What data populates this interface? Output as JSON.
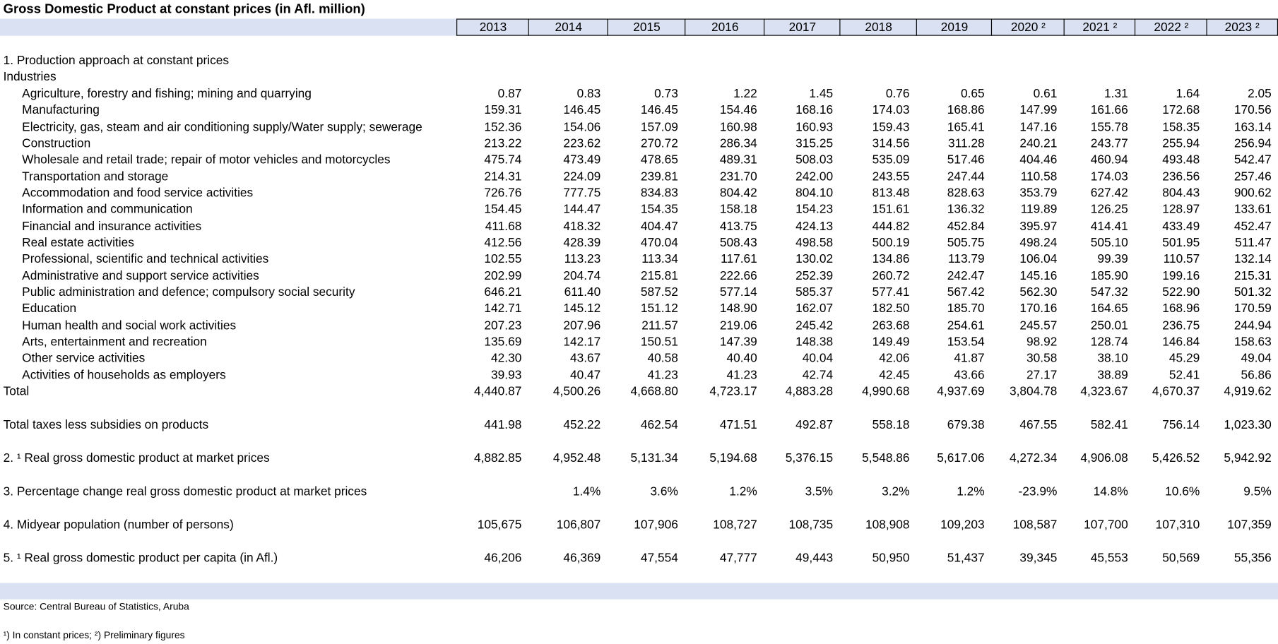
{
  "title": "Gross Domestic Product at constant prices (in Afl. million)",
  "columns": [
    "2013",
    "2014",
    "2015",
    "2016",
    "2017",
    "2018",
    "2019",
    "2020 ²",
    "2021 ²",
    "2022 ²",
    "2023 ²"
  ],
  "heading": "1. Production approach at constant prices",
  "industries": {
    "label": "Industries",
    "rows": [
      {
        "label": "Agriculture, forestry and fishing; mining and quarrying",
        "values": [
          "0.87",
          "0.83",
          "0.73",
          "1.22",
          "1.45",
          "0.76",
          "0.65",
          "0.61",
          "1.31",
          "1.64",
          "2.05"
        ]
      },
      {
        "label": "Manufacturing",
        "values": [
          "159.31",
          "146.45",
          "146.45",
          "154.46",
          "168.16",
          "174.03",
          "168.86",
          "147.99",
          "161.66",
          "172.68",
          "170.56"
        ]
      },
      {
        "label": "Electricity, gas, steam and air conditioning supply/Water supply; sewerage",
        "values": [
          "152.36",
          "154.06",
          "157.09",
          "160.98",
          "160.93",
          "159.43",
          "165.41",
          "147.16",
          "155.78",
          "158.35",
          "163.14"
        ]
      },
      {
        "label": "Construction",
        "values": [
          "213.22",
          "223.62",
          "270.72",
          "286.34",
          "315.25",
          "314.56",
          "311.28",
          "240.21",
          "243.77",
          "255.94",
          "256.94"
        ]
      },
      {
        "label": "Wholesale and retail trade; repair of motor vehicles and motorcycles",
        "values": [
          "475.74",
          "473.49",
          "478.65",
          "489.31",
          "508.03",
          "535.09",
          "517.46",
          "404.46",
          "460.94",
          "493.48",
          "542.47"
        ]
      },
      {
        "label": "Transportation and storage",
        "values": [
          "214.31",
          "224.09",
          "239.81",
          "231.70",
          "242.00",
          "243.55",
          "247.44",
          "110.58",
          "174.03",
          "236.56",
          "257.46"
        ]
      },
      {
        "label": "Accommodation and food service activities",
        "values": [
          "726.76",
          "777.75",
          "834.83",
          "804.42",
          "804.10",
          "813.48",
          "828.63",
          "353.79",
          "627.42",
          "804.43",
          "900.62"
        ]
      },
      {
        "label": "Information and communication",
        "values": [
          "154.45",
          "144.47",
          "154.35",
          "158.18",
          "154.23",
          "151.61",
          "136.32",
          "119.89",
          "126.25",
          "128.97",
          "133.61"
        ]
      },
      {
        "label": "Financial and insurance activities",
        "values": [
          "411.68",
          "418.32",
          "404.47",
          "413.75",
          "424.13",
          "444.82",
          "452.84",
          "395.97",
          "414.41",
          "433.49",
          "452.47"
        ]
      },
      {
        "label": "Real estate activities",
        "values": [
          "412.56",
          "428.39",
          "470.04",
          "508.43",
          "498.58",
          "500.19",
          "505.75",
          "498.24",
          "505.10",
          "501.95",
          "511.47"
        ]
      },
      {
        "label": "Professional, scientific and technical activities",
        "values": [
          "102.55",
          "113.23",
          "113.34",
          "117.61",
          "130.02",
          "134.86",
          "113.79",
          "106.04",
          "99.39",
          "110.57",
          "132.14"
        ]
      },
      {
        "label": "Administrative and support service activities",
        "values": [
          "202.99",
          "204.74",
          "215.81",
          "222.66",
          "252.39",
          "260.72",
          "242.47",
          "145.16",
          "185.90",
          "199.16",
          "215.31"
        ]
      },
      {
        "label": "Public administration and defence; compulsory social security",
        "values": [
          "646.21",
          "611.40",
          "587.52",
          "577.14",
          "585.37",
          "577.41",
          "567.42",
          "562.30",
          "547.32",
          "522.90",
          "501.32"
        ]
      },
      {
        "label": "Education",
        "values": [
          "142.71",
          "145.12",
          "151.12",
          "148.90",
          "162.07",
          "182.50",
          "185.70",
          "170.16",
          "164.65",
          "168.96",
          "170.59"
        ]
      },
      {
        "label": "Human health and social work activities",
        "values": [
          "207.23",
          "207.96",
          "211.57",
          "219.06",
          "245.42",
          "263.68",
          "254.61",
          "245.57",
          "250.01",
          "236.75",
          "244.94"
        ]
      },
      {
        "label": "Arts, entertainment and recreation",
        "values": [
          "135.69",
          "142.17",
          "150.51",
          "147.39",
          "148.38",
          "149.49",
          "153.54",
          "98.92",
          "128.74",
          "146.84",
          "158.63"
        ]
      },
      {
        "label": "Other service activities",
        "values": [
          "42.30",
          "43.67",
          "40.58",
          "40.40",
          "40.04",
          "42.06",
          "41.87",
          "30.58",
          "38.10",
          "45.29",
          "49.04"
        ]
      },
      {
        "label": "Activities of households as employers",
        "values": [
          "39.93",
          "40.47",
          "41.23",
          "41.23",
          "42.74",
          "42.45",
          "43.66",
          "27.17",
          "38.89",
          "52.41",
          "56.86"
        ]
      }
    ]
  },
  "total": {
    "label": "Total",
    "values": [
      "4,440.87",
      "4,500.26",
      "4,668.80",
      "4,723.17",
      "4,883.28",
      "4,990.68",
      "4,937.69",
      "3,804.78",
      "4,323.67",
      "4,670.37",
      "4,919.62"
    ]
  },
  "summary": [
    {
      "label": "Total taxes less subsidies on products",
      "values": [
        "441.98",
        "452.22",
        "462.54",
        "471.51",
        "492.87",
        "558.18",
        "679.38",
        "467.55",
        "582.41",
        "756.14",
        "1,023.30"
      ]
    },
    {
      "label": "2. ¹ Real gross domestic product at market prices",
      "values": [
        "4,882.85",
        "4,952.48",
        "5,131.34",
        "5,194.68",
        "5,376.15",
        "5,548.86",
        "5,617.06",
        "4,272.34",
        "4,906.08",
        "5,426.52",
        "5,942.92"
      ]
    },
    {
      "label": "3. Percentage change real gross domestic product at market prices",
      "values": [
        null,
        "1.4%",
        "3.6%",
        "1.2%",
        "3.5%",
        "3.2%",
        "1.2%",
        "-23.9%",
        "14.8%",
        "10.6%",
        "9.5%"
      ]
    },
    {
      "label": "4. Midyear population (number of persons)",
      "values": [
        "105,675",
        "106,807",
        "107,906",
        "108,727",
        "108,735",
        "108,908",
        "109,203",
        "108,587",
        "107,700",
        "107,310",
        "107,359"
      ]
    },
    {
      "label": "5. ¹ Real gross domestic product per capita (in Afl.)",
      "values": [
        "46,206",
        "46,369",
        "47,554",
        "47,777",
        "49,443",
        "50,950",
        "51,437",
        "39,345",
        "45,553",
        "50,569",
        "55,356"
      ]
    }
  ],
  "source": "Source: Central Bureau of Statistics, Aruba",
  "footnote": "¹) In constant prices; ²) Preliminary figures"
}
